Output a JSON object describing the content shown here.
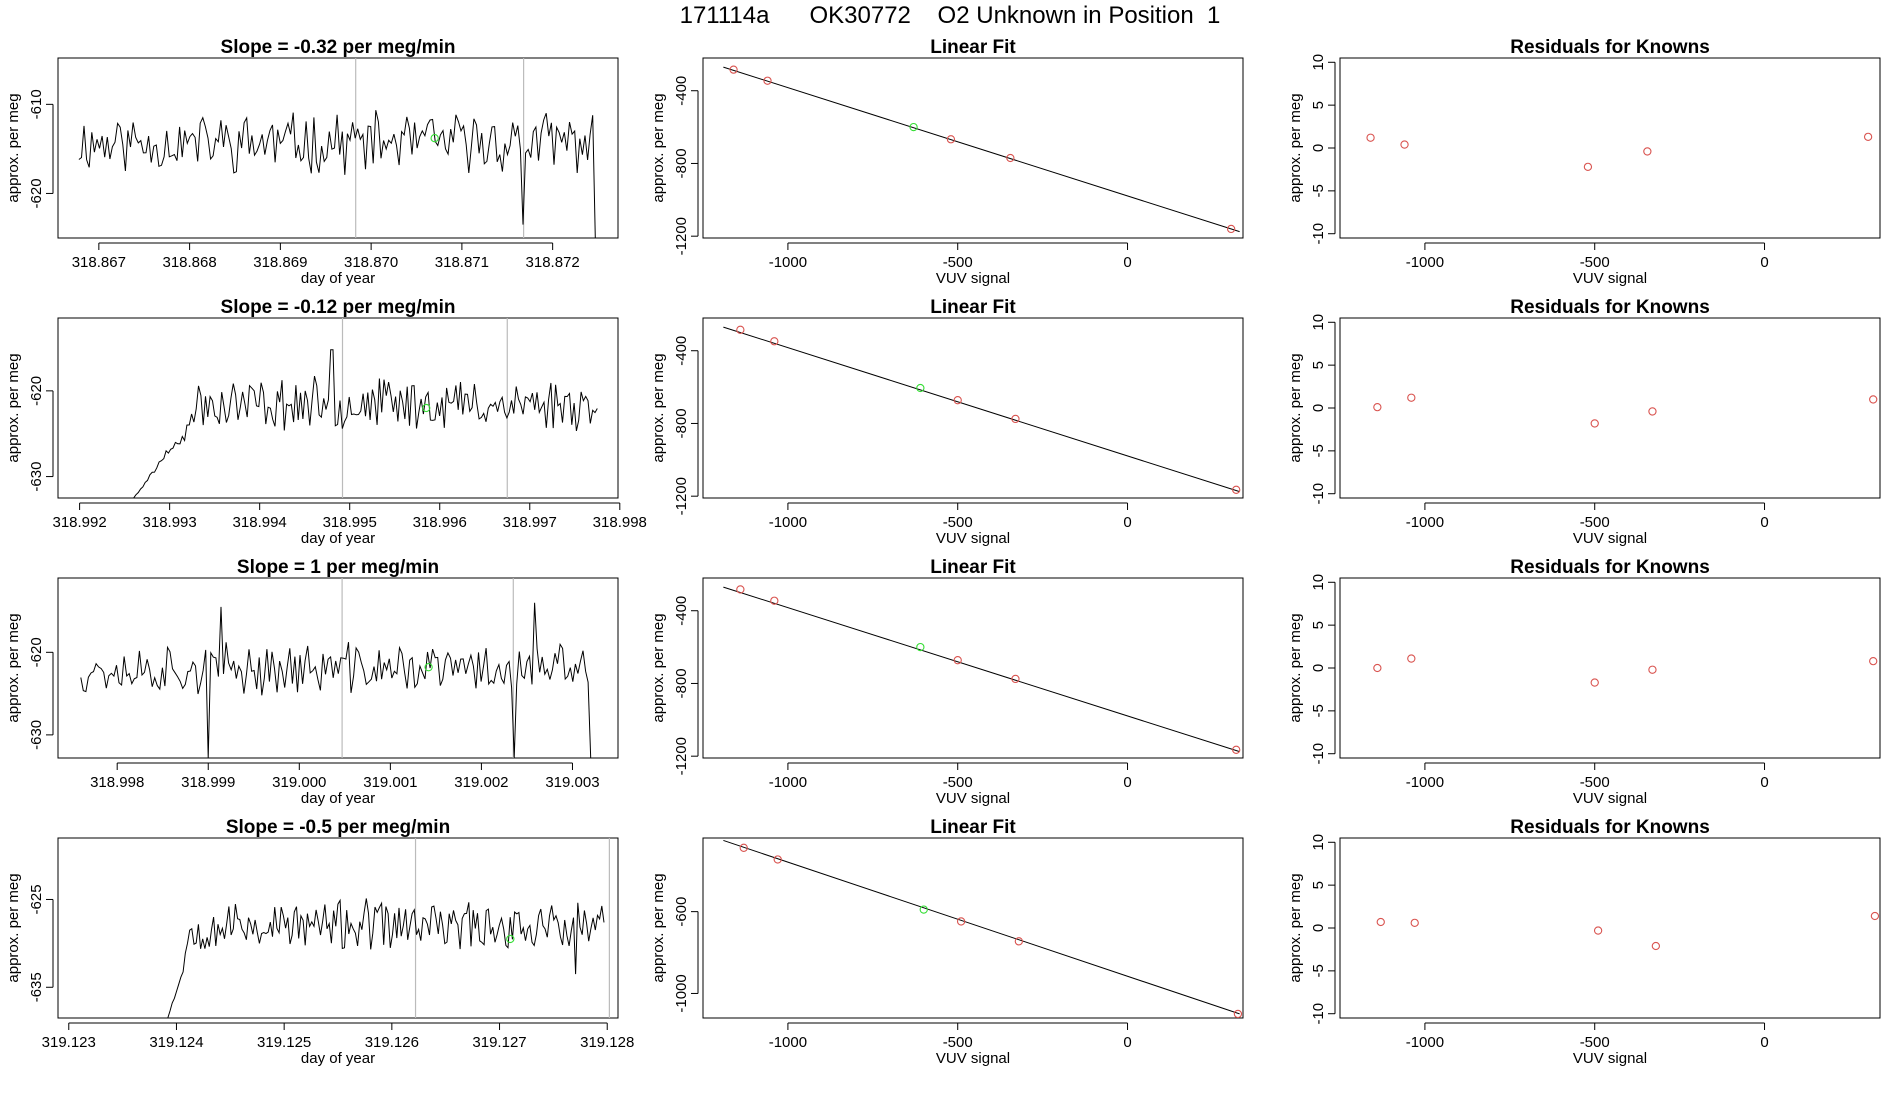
{
  "page_title": "171114a      OK30772    O2 Unknown in Position  1",
  "axis_labels": {
    "time_x": "day of year",
    "fit_x": "VUV signal",
    "y": "approx. per meg"
  },
  "colors": {
    "line": "#000000",
    "known_point": "#d9534f",
    "unknown_point": "#33dd33",
    "vline": "#bbbbbb",
    "frame": "#000000"
  },
  "chart_data": [
    {
      "type": "line",
      "title": "Slope =  -0.32  per meg/min",
      "xlabel": "day of year",
      "ylabel": "approx. per meg",
      "xlim": [
        318.86655,
        318.87272
      ],
      "ylim": [
        -625.0,
        -604.8
      ],
      "xticks": [
        318.867,
        318.868,
        318.869,
        318.87,
        318.871,
        318.872
      ],
      "xtick_labels": [
        "318.867",
        "318.868",
        "318.869",
        "318.870",
        "318.871",
        "318.872"
      ],
      "yticks": [
        -620,
        -610
      ],
      "ytick_labels": [
        "-620",
        "-610"
      ],
      "vlines": [
        318.86983,
        318.87168
      ],
      "trace_start": 318.86678,
      "trace_end": 318.87247,
      "trace_base": -614.3,
      "trace_amp": 2.8,
      "trace_seed": 11,
      "end_drop": -625.0,
      "dips": [
        {
          "x": 318.87168,
          "y": -623.5
        }
      ],
      "unknown_point": {
        "x": 318.8707,
        "y": -613.8
      }
    },
    {
      "type": "scatter",
      "title": "Linear Fit",
      "xlabel": "VUV signal",
      "ylabel": "approx. per meg",
      "xlim": [
        -1250,
        340
      ],
      "ylim": [
        -1210,
        -220
      ],
      "xticks": [
        -1000,
        -500,
        0
      ],
      "xtick_labels": [
        "-1000",
        "-500",
        "0"
      ],
      "yticks": [
        -1200,
        -800,
        -400
      ],
      "ytick_labels": [
        "-1200",
        "-800",
        "-400"
      ],
      "fit_line": {
        "x": [
          -1190,
          330
        ],
        "y": [
          -270,
          -1175
        ]
      },
      "knowns": [
        {
          "x": -1160,
          "y": -284
        },
        {
          "x": -1060,
          "y": -345
        },
        {
          "x": -520,
          "y": -667
        },
        {
          "x": -345,
          "y": -770
        },
        {
          "x": 305,
          "y": -1160
        }
      ],
      "unknown": {
        "x": -630,
        "y": -600
      }
    },
    {
      "type": "scatter",
      "title": "Residuals for Knowns",
      "xlabel": "VUV signal",
      "ylabel": "approx. per meg",
      "xlim": [
        -1250,
        340
      ],
      "ylim": [
        -10.5,
        10.5
      ],
      "xticks": [
        -1000,
        -500,
        0
      ],
      "xtick_labels": [
        "-1000",
        "-500",
        "0"
      ],
      "yticks": [
        -10,
        -5,
        0,
        5,
        10
      ],
      "ytick_labels": [
        "-10",
        "-5",
        "0",
        "5",
        "10"
      ],
      "points": [
        {
          "x": -1160,
          "y": 1.2
        },
        {
          "x": -1060,
          "y": 0.4
        },
        {
          "x": -520,
          "y": -2.2
        },
        {
          "x": -345,
          "y": -0.4
        },
        {
          "x": 305,
          "y": 1.3
        }
      ]
    },
    {
      "type": "line",
      "title": "Slope =  -0.12  per meg/min",
      "xlabel": "day of year",
      "ylabel": "approx. per meg",
      "xlim": [
        318.99176,
        318.99798
      ],
      "ylim": [
        -632.5,
        -611.5
      ],
      "xticks": [
        318.992,
        318.993,
        318.994,
        318.995,
        318.996,
        318.997,
        318.998
      ],
      "xtick_labels": [
        "318.992",
        "318.993",
        "318.994",
        "318.995",
        "318.996",
        "318.997",
        "318.998"
      ],
      "yticks": [
        -630,
        -620
      ],
      "ytick_labels": [
        "-630",
        "-620"
      ],
      "vlines": [
        318.99492,
        318.99675
      ],
      "trace_start": 318.9926,
      "trace_end": 318.99775,
      "trace_base": -621.5,
      "trace_amp": 2.5,
      "trace_seed": 23,
      "start_ramp": {
        "from": -632.5,
        "to": -623.0,
        "length": 0.0007
      },
      "spikes": [
        {
          "x": 318.9948,
          "y": -615.2
        }
      ],
      "unknown_point": {
        "x": 318.99585,
        "y": -622.0
      }
    },
    {
      "type": "scatter",
      "title": "Linear Fit",
      "xlabel": "VUV signal",
      "ylabel": "approx. per meg",
      "xlim": [
        -1250,
        340
      ],
      "ylim": [
        -1210,
        -220
      ],
      "xticks": [
        -1000,
        -500,
        0
      ],
      "xtick_labels": [
        "-1000",
        "-500",
        "0"
      ],
      "yticks": [
        -1200,
        -800,
        -400
      ],
      "ytick_labels": [
        "-1200",
        "-800",
        "-400"
      ],
      "fit_line": {
        "x": [
          -1190,
          330
        ],
        "y": [
          -270,
          -1175
        ]
      },
      "knowns": [
        {
          "x": -1140,
          "y": -285
        },
        {
          "x": -1040,
          "y": -348
        },
        {
          "x": -500,
          "y": -672
        },
        {
          "x": -330,
          "y": -775
        },
        {
          "x": 320,
          "y": -1165
        }
      ],
      "unknown": {
        "x": -610,
        "y": -605
      }
    },
    {
      "type": "scatter",
      "title": "Residuals for Knowns",
      "xlabel": "VUV signal",
      "ylabel": "approx. per meg",
      "xlim": [
        -1250,
        340
      ],
      "ylim": [
        -10.5,
        10.5
      ],
      "xticks": [
        -1000,
        -500,
        0
      ],
      "xtick_labels": [
        "-1000",
        "-500",
        "0"
      ],
      "yticks": [
        -10,
        -5,
        0,
        5,
        10
      ],
      "ytick_labels": [
        "-10",
        "-5",
        "0",
        "5",
        "10"
      ],
      "points": [
        {
          "x": -1140,
          "y": 0.1
        },
        {
          "x": -1040,
          "y": 1.2
        },
        {
          "x": -500,
          "y": -1.8
        },
        {
          "x": -330,
          "y": -0.4
        },
        {
          "x": 320,
          "y": 1.0
        }
      ]
    },
    {
      "type": "line",
      "title": "Slope =  1  per meg/min",
      "xlabel": "day of year",
      "ylabel": "approx. per meg",
      "xlim": [
        318.99735,
        319.0035
      ],
      "ylim": [
        -632.8,
        -611.0
      ],
      "xticks": [
        318.998,
        318.999,
        319.0,
        319.001,
        319.002,
        319.003
      ],
      "xtick_labels": [
        "318.998",
        "318.999",
        "319.000",
        "319.001",
        "319.002",
        "319.003"
      ],
      "yticks": [
        -630,
        -620
      ],
      "ytick_labels": [
        "-630",
        "-620"
      ],
      "vlines": [
        319.00047,
        319.00235
      ],
      "trace_start": 318.9976,
      "trace_end": 319.0032,
      "trace_base": -622.0,
      "trace_amp": 2.6,
      "trace_seed": 37,
      "end_drop": -632.8,
      "dips": [
        {
          "x": 318.999,
          "y": -632.8
        },
        {
          "x": 319.00235,
          "y": -632.8
        }
      ],
      "spikes": [
        {
          "x": 318.99915,
          "y": -614.5
        },
        {
          "x": 319.00258,
          "y": -614.0
        }
      ],
      "unknown_point": {
        "x": 319.00142,
        "y": -621.8
      }
    },
    {
      "type": "scatter",
      "title": "Linear Fit",
      "xlabel": "VUV signal",
      "ylabel": "approx. per meg",
      "xlim": [
        -1250,
        340
      ],
      "ylim": [
        -1210,
        -220
      ],
      "xticks": [
        -1000,
        -500,
        0
      ],
      "xtick_labels": [
        "-1000",
        "-500",
        "0"
      ],
      "yticks": [
        -1200,
        -800,
        -400
      ],
      "ytick_labels": [
        "-1200",
        "-800",
        "-400"
      ],
      "fit_line": {
        "x": [
          -1190,
          330
        ],
        "y": [
          -270,
          -1175
        ]
      },
      "knowns": [
        {
          "x": -1140,
          "y": -283
        },
        {
          "x": -1040,
          "y": -345
        },
        {
          "x": -500,
          "y": -672
        },
        {
          "x": -330,
          "y": -775
        },
        {
          "x": 320,
          "y": -1165
        }
      ],
      "unknown": {
        "x": -610,
        "y": -600
      }
    },
    {
      "type": "scatter",
      "title": "Residuals for Knowns",
      "xlabel": "VUV signal",
      "ylabel": "approx. per meg",
      "xlim": [
        -1250,
        340
      ],
      "ylim": [
        -10.5,
        10.5
      ],
      "xticks": [
        -1000,
        -500,
        0
      ],
      "xtick_labels": [
        "-1000",
        "-500",
        "0"
      ],
      "yticks": [
        -10,
        -5,
        0,
        5,
        10
      ],
      "ytick_labels": [
        "-10",
        "-5",
        "0",
        "5",
        "10"
      ],
      "points": [
        {
          "x": -1140,
          "y": 0.0
        },
        {
          "x": -1040,
          "y": 1.1
        },
        {
          "x": -500,
          "y": -1.7
        },
        {
          "x": -330,
          "y": -0.2
        },
        {
          "x": 320,
          "y": 0.8
        }
      ]
    },
    {
      "type": "line",
      "title": "Slope =  -0.5  per meg/min",
      "xlabel": "day of year",
      "ylabel": "approx. per meg",
      "xlim": [
        319.1229,
        319.1281
      ],
      "ylim": [
        -638.5,
        -618.0
      ],
      "xticks": [
        319.123,
        319.124,
        319.125,
        319.126,
        319.127,
        319.128
      ],
      "xtick_labels": [
        "319.123",
        "319.124",
        "319.125",
        "319.126",
        "319.127",
        "319.128"
      ],
      "yticks": [
        -635,
        -625
      ],
      "ytick_labels": [
        "-635",
        "-625"
      ],
      "vlines": [
        319.12622,
        319.12802
      ],
      "trace_start": 319.12392,
      "trace_end": 319.12797,
      "trace_base": -628.0,
      "trace_amp": 2.4,
      "trace_seed": 53,
      "start_ramp": {
        "from": -638.5,
        "to": -630.0,
        "length": 0.0002
      },
      "dips": [
        {
          "x": 319.1277,
          "y": -633.5
        }
      ],
      "unknown_point": {
        "x": 319.1271,
        "y": -629.5
      }
    },
    {
      "type": "scatter",
      "title": "Linear Fit",
      "xlabel": "VUV signal",
      "ylabel": "approx. per meg",
      "xlim": [
        -1250,
        340
      ],
      "ylim": [
        -1120,
        -240
      ],
      "xticks": [
        -1000,
        -500,
        0
      ],
      "xtick_labels": [
        "-1000",
        "-500",
        "0"
      ],
      "yticks": [
        -1000,
        -600
      ],
      "ytick_labels": [
        "-1000",
        "-600"
      ],
      "fit_line": {
        "x": [
          -1190,
          330
        ],
        "y": [
          -252,
          -1100
        ]
      },
      "knowns": [
        {
          "x": -1130,
          "y": -288
        },
        {
          "x": -1030,
          "y": -345
        },
        {
          "x": -490,
          "y": -648
        },
        {
          "x": -320,
          "y": -745
        },
        {
          "x": 325,
          "y": -1100
        }
      ],
      "unknown": {
        "x": -600,
        "y": -590
      }
    },
    {
      "type": "scatter",
      "title": "Residuals for Knowns",
      "xlabel": "VUV signal",
      "ylabel": "approx. per meg",
      "xlim": [
        -1250,
        340
      ],
      "ylim": [
        -10.5,
        10.5
      ],
      "xticks": [
        -1000,
        -500,
        0
      ],
      "xtick_labels": [
        "-1000",
        "-500",
        "0"
      ],
      "yticks": [
        -10,
        -5,
        0,
        5,
        10
      ],
      "ytick_labels": [
        "-10",
        "-5",
        "0",
        "5",
        "10"
      ],
      "points": [
        {
          "x": -1130,
          "y": 0.7
        },
        {
          "x": -1030,
          "y": 0.6
        },
        {
          "x": -490,
          "y": -0.3
        },
        {
          "x": -320,
          "y": -2.1
        },
        {
          "x": 325,
          "y": 1.4
        }
      ]
    }
  ]
}
